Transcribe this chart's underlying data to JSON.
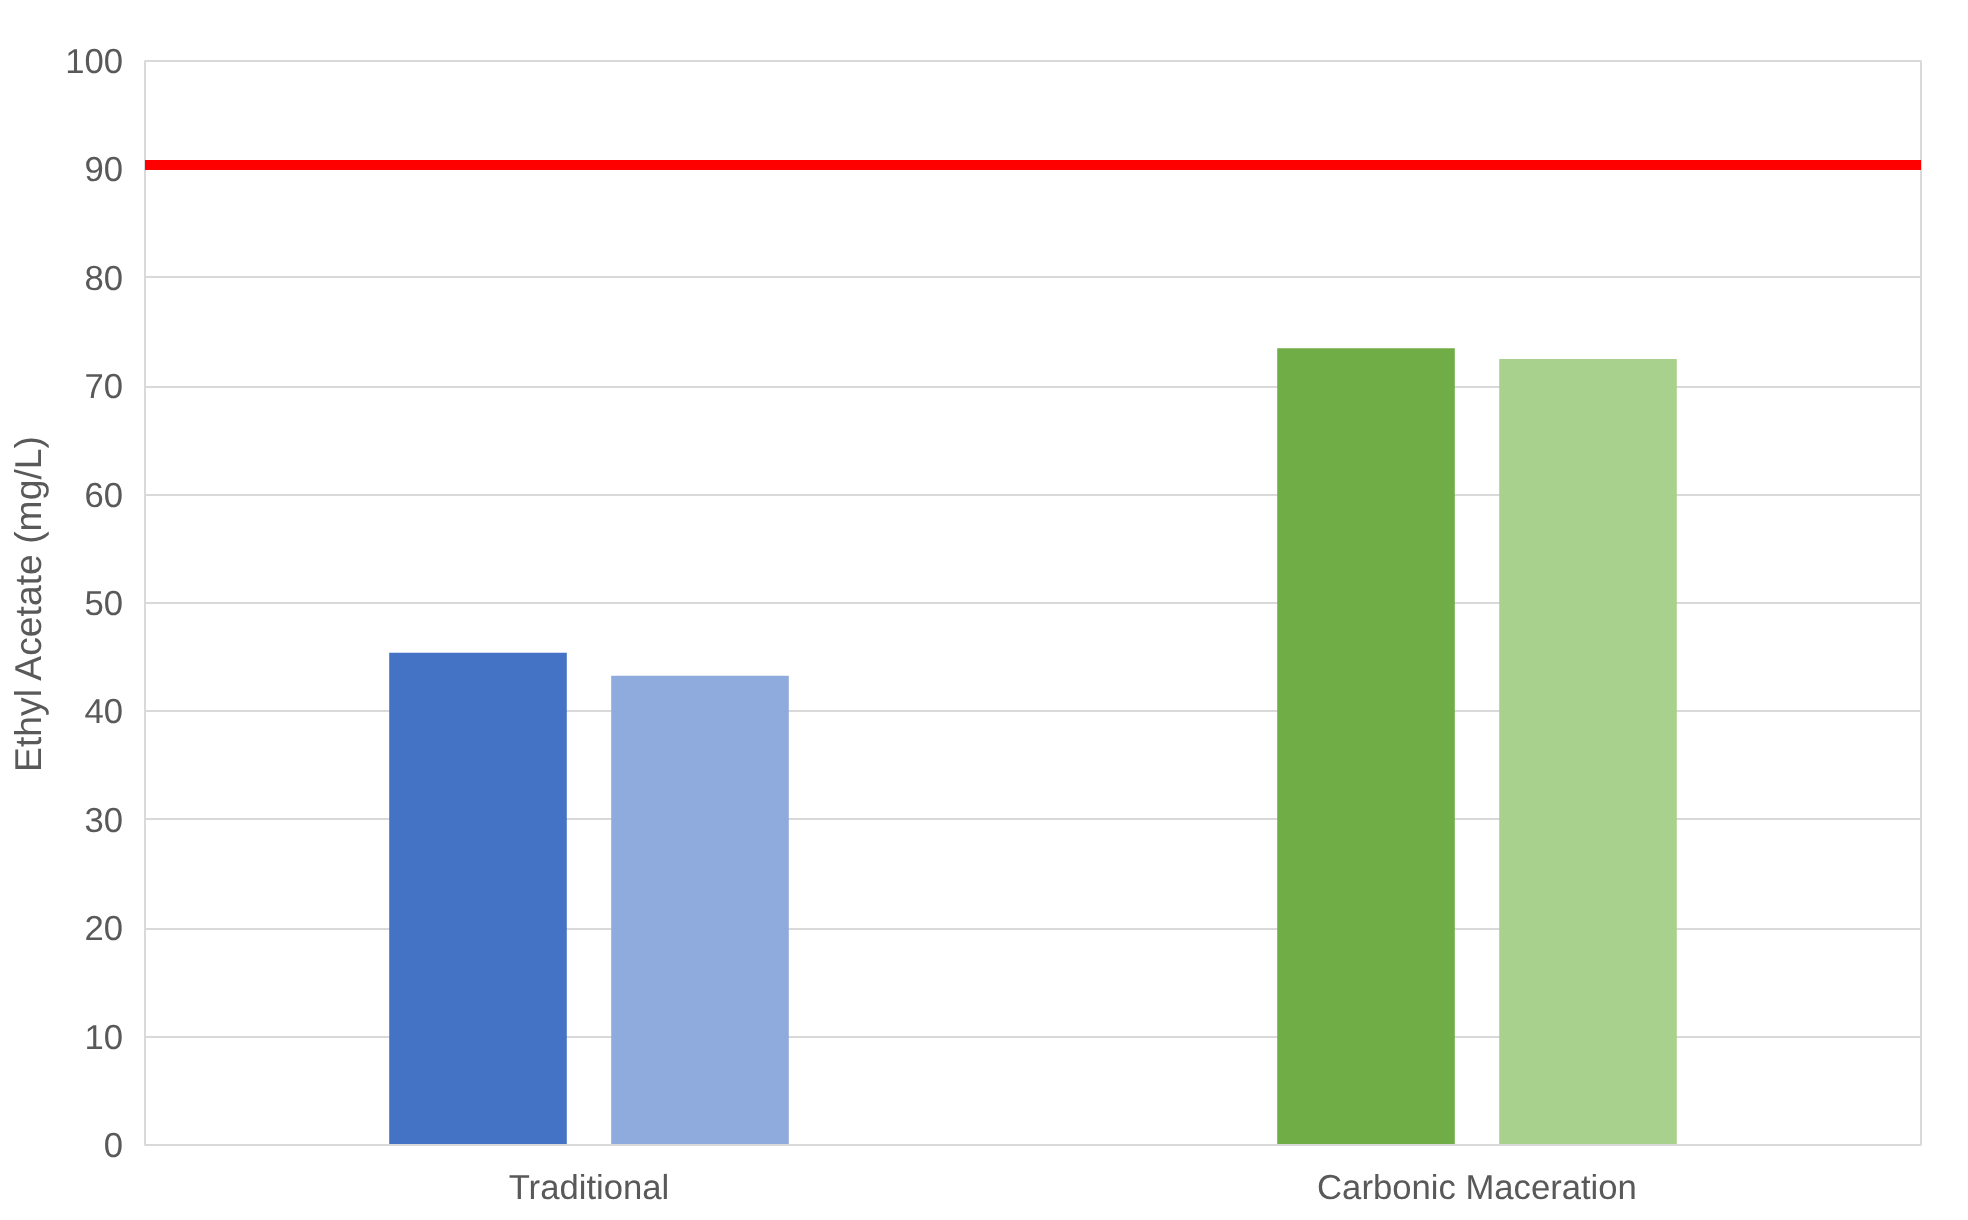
{
  "chart_data": {
    "type": "bar",
    "ylabel": "Ethyl Acetate (mg/L)",
    "categories": [
      "Traditional",
      "Carbonic Maceration"
    ],
    "series": [
      {
        "colors": [
          "#4472c4",
          "#70ad47"
        ],
        "values": [
          45.4,
          73.5
        ]
      },
      {
        "colors": [
          "#8faadc",
          "#a9d18e"
        ],
        "values": [
          43.3,
          72.5
        ]
      }
    ],
    "ylim": [
      0,
      100
    ],
    "yticks": [
      0,
      10,
      20,
      30,
      40,
      50,
      60,
      70,
      80,
      90,
      100
    ],
    "grid": "y",
    "ref_lines": [
      {
        "axis": "y",
        "value": 90.4,
        "color": "#ff0000"
      }
    ]
  }
}
